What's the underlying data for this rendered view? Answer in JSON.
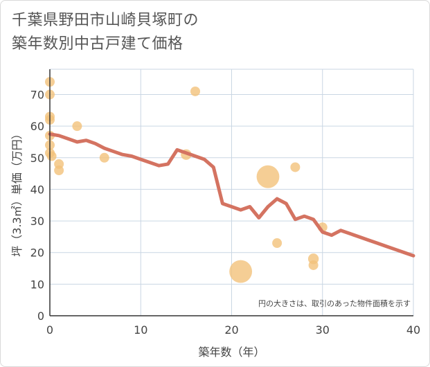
{
  "title_line1": "千葉県野田市山崎貝塚町の",
  "title_line2": "築年数別中古戸建て価格",
  "chart_data": {
    "type": "scatter",
    "xlabel": "築年数（年）",
    "ylabel": "坪（3.3㎡）単価（万円）",
    "xlim": [
      0,
      40
    ],
    "ylim": [
      0,
      78
    ],
    "xticks": [
      0,
      10,
      20,
      30,
      40
    ],
    "yticks": [
      0,
      10,
      20,
      30,
      40,
      50,
      60,
      70
    ],
    "grid": true,
    "note": "円の大きさは、取引のあった物件面積を示す",
    "bubble_color": "#f2c27a",
    "line_color": "#d47361",
    "points": [
      {
        "x": 0,
        "y": 74,
        "size": 1
      },
      {
        "x": 0,
        "y": 70,
        "size": 1
      },
      {
        "x": 0,
        "y": 63,
        "size": 1
      },
      {
        "x": 0,
        "y": 62,
        "size": 1
      },
      {
        "x": 0,
        "y": 57,
        "size": 1
      },
      {
        "x": 0,
        "y": 54,
        "size": 1
      },
      {
        "x": 0,
        "y": 51.5,
        "size": 1
      },
      {
        "x": 0.2,
        "y": 50.5,
        "size": 1
      },
      {
        "x": 1,
        "y": 48,
        "size": 1
      },
      {
        "x": 1,
        "y": 46,
        "size": 1
      },
      {
        "x": 3,
        "y": 60,
        "size": 1
      },
      {
        "x": 6,
        "y": 50,
        "size": 1
      },
      {
        "x": 15,
        "y": 51,
        "size": 1.2
      },
      {
        "x": 16,
        "y": 71,
        "size": 1
      },
      {
        "x": 21,
        "y": 14,
        "size": 5.5
      },
      {
        "x": 24,
        "y": 44,
        "size": 5.5
      },
      {
        "x": 25,
        "y": 23,
        "size": 1
      },
      {
        "x": 27,
        "y": 47,
        "size": 1
      },
      {
        "x": 29,
        "y": 18,
        "size": 1.2
      },
      {
        "x": 29,
        "y": 16,
        "size": 1
      },
      {
        "x": 30,
        "y": 28,
        "size": 1
      }
    ],
    "trend": {
      "x": [
        0,
        1,
        2,
        3,
        4,
        5,
        6,
        7,
        8,
        9,
        10,
        11,
        12,
        13,
        14,
        15,
        16,
        17,
        18,
        19,
        20,
        21,
        22,
        23,
        24,
        25,
        26,
        27,
        28,
        29,
        30,
        31,
        32,
        33,
        34,
        35,
        36,
        37,
        38,
        39,
        40
      ],
      "y": [
        57.5,
        57,
        56,
        55,
        55.5,
        54.5,
        53,
        52,
        51,
        50.5,
        49.5,
        48.5,
        47.5,
        48,
        52.5,
        51.5,
        50.5,
        49.5,
        47,
        35.5,
        34.5,
        33.5,
        34.5,
        31,
        34.5,
        37,
        35.5,
        30.5,
        31.5,
        30.5,
        26.5,
        25.5,
        27,
        26,
        25,
        24,
        23,
        22,
        21,
        20,
        19
      ]
    }
  }
}
